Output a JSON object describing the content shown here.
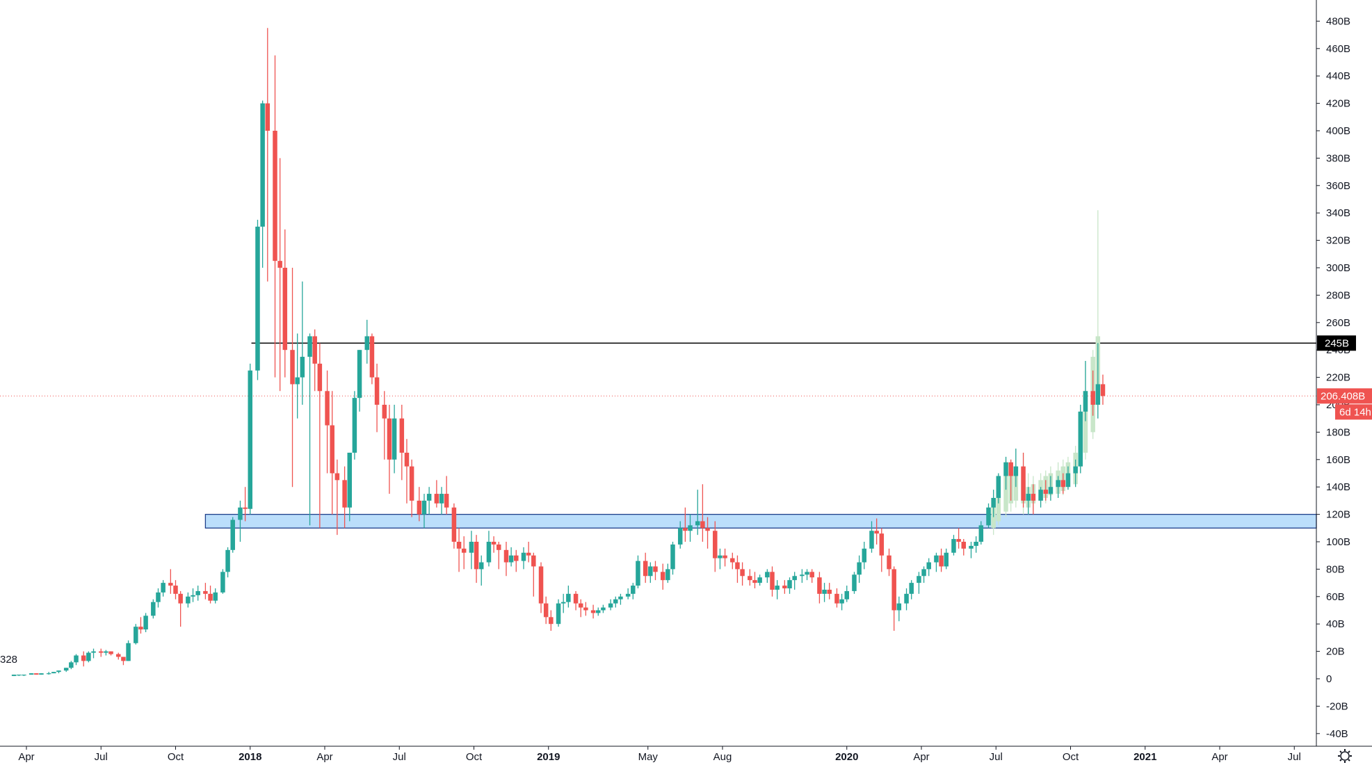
{
  "chart_data": {
    "type": "candlestick",
    "timeframe": "weekly",
    "y_axis": {
      "ticks": [
        "-40B",
        "-20B",
        "0",
        "20B",
        "40B",
        "60B",
        "80B",
        "100B",
        "120B",
        "140B",
        "160B",
        "180B",
        "200B",
        "220B",
        "240B",
        "260B",
        "280B",
        "300B",
        "320B",
        "340B",
        "360B",
        "380B",
        "400B",
        "420B",
        "440B",
        "460B",
        "480B"
      ],
      "tick_values": [
        -40,
        -20,
        0,
        20,
        40,
        60,
        80,
        100,
        120,
        140,
        160,
        180,
        200,
        220,
        240,
        260,
        280,
        300,
        320,
        340,
        360,
        380,
        400,
        420,
        440,
        460,
        480
      ],
      "range": [
        -45,
        490
      ],
      "unit": "B"
    },
    "x_axis": {
      "ticks": [
        {
          "label": "Apr",
          "month": 3,
          "bold": false
        },
        {
          "label": "Jul",
          "month": 6,
          "bold": false
        },
        {
          "label": "Oct",
          "month": 9,
          "bold": false
        },
        {
          "label": "2018",
          "month": 12,
          "bold": true
        },
        {
          "label": "Apr",
          "month": 15,
          "bold": false
        },
        {
          "label": "Jul",
          "month": 18,
          "bold": false
        },
        {
          "label": "Oct",
          "month": 21,
          "bold": false
        },
        {
          "label": "2019",
          "month": 24,
          "bold": true
        },
        {
          "label": "May",
          "month": 28,
          "bold": false
        },
        {
          "label": "Aug",
          "month": 31,
          "bold": false
        },
        {
          "label": "2020",
          "month": 36,
          "bold": true
        },
        {
          "label": "Apr",
          "month": 39,
          "bold": false
        },
        {
          "label": "Jul",
          "month": 42,
          "bold": false
        },
        {
          "label": "Oct",
          "month": 45,
          "bold": false
        },
        {
          "label": "2021",
          "month": 48,
          "bold": true
        },
        {
          "label": "Apr",
          "month": 51,
          "bold": false
        },
        {
          "label": "Jul",
          "month": 54,
          "bold": false
        }
      ],
      "range_months": [
        2.55,
        56.55
      ]
    },
    "left_label": "328",
    "horizontal_line": {
      "value": 245,
      "label": "245B",
      "color": "#000000"
    },
    "zone": {
      "low": 110,
      "high": 120,
      "start_month": 10.2,
      "fill": "#bbdefb",
      "stroke": "#1e3f8a"
    },
    "current_price": {
      "value": 206.408,
      "label": "206.408B",
      "countdown": "6d 14h",
      "color": "#ef5350"
    },
    "colors": {
      "up": "#26a69a",
      "down": "#ef5350",
      "up_alt": "#c8e6c9",
      "grid": "#ffffff",
      "axis": "#131722"
    },
    "candles": [
      [
        2.5,
        2,
        3,
        2,
        3
      ],
      [
        2.7,
        3,
        3,
        2,
        3
      ],
      [
        2.9,
        3,
        3,
        2,
        3
      ],
      [
        3.2,
        3,
        4,
        3,
        4
      ],
      [
        3.4,
        4,
        4,
        3,
        3
      ],
      [
        3.6,
        3,
        4,
        3,
        4
      ],
      [
        3.9,
        4,
        5,
        3,
        4
      ],
      [
        4.1,
        4,
        5,
        4,
        5
      ],
      [
        4.3,
        5,
        6,
        4,
        6
      ],
      [
        4.6,
        6,
        8,
        5,
        8
      ],
      [
        4.8,
        8,
        13,
        7,
        12
      ],
      [
        5.0,
        12,
        18,
        10,
        17
      ],
      [
        5.3,
        17,
        20,
        9,
        13
      ],
      [
        5.5,
        13,
        20,
        12,
        19
      ],
      [
        5.7,
        19,
        22,
        15,
        20
      ],
      [
        6.0,
        20,
        22,
        16,
        19
      ],
      [
        6.2,
        19,
        21,
        17,
        20
      ],
      [
        6.4,
        20,
        20,
        17,
        18
      ],
      [
        6.7,
        18,
        19,
        14,
        16
      ],
      [
        6.9,
        16,
        16,
        10,
        13
      ],
      [
        7.1,
        13,
        28,
        13,
        26
      ],
      [
        7.4,
        26,
        40,
        25,
        38
      ],
      [
        7.6,
        38,
        45,
        33,
        36
      ],
      [
        7.8,
        36,
        48,
        34,
        46
      ],
      [
        8.1,
        46,
        58,
        44,
        56
      ],
      [
        8.3,
        56,
        66,
        52,
        63
      ],
      [
        8.5,
        63,
        72,
        60,
        70
      ],
      [
        8.8,
        70,
        80,
        62,
        68
      ],
      [
        9.0,
        68,
        72,
        58,
        62
      ],
      [
        9.2,
        62,
        64,
        38,
        55
      ],
      [
        9.5,
        55,
        63,
        52,
        60
      ],
      [
        9.7,
        60,
        66,
        56,
        61
      ],
      [
        9.9,
        61,
        68,
        57,
        64
      ],
      [
        10.2,
        64,
        70,
        58,
        62
      ],
      [
        10.4,
        62,
        68,
        55,
        57
      ],
      [
        10.6,
        57,
        66,
        55,
        63
      ],
      [
        10.9,
        63,
        80,
        62,
        78
      ],
      [
        11.1,
        78,
        96,
        74,
        94
      ],
      [
        11.3,
        94,
        118,
        92,
        116
      ],
      [
        11.6,
        116,
        130,
        100,
        125
      ],
      [
        11.8,
        125,
        140,
        115,
        124
      ],
      [
        12.0,
        124,
        230,
        120,
        225
      ],
      [
        12.3,
        225,
        335,
        218,
        330
      ],
      [
        12.5,
        330,
        422,
        300,
        420
      ],
      [
        12.7,
        420,
        475,
        290,
        400
      ],
      [
        13.0,
        400,
        455,
        220,
        305
      ],
      [
        13.2,
        305,
        380,
        210,
        300
      ],
      [
        13.4,
        300,
        328,
        220,
        240
      ],
      [
        13.7,
        240,
        300,
        140,
        215
      ],
      [
        13.9,
        215,
        252,
        190,
        220
      ],
      [
        14.1,
        220,
        290,
        200,
        235
      ],
      [
        14.4,
        235,
        252,
        112,
        250
      ],
      [
        14.6,
        250,
        255,
        210,
        230
      ],
      [
        14.8,
        230,
        245,
        110,
        210
      ],
      [
        15.1,
        210,
        225,
        150,
        185
      ],
      [
        15.3,
        185,
        210,
        120,
        150
      ],
      [
        15.5,
        150,
        160,
        105,
        145
      ],
      [
        15.8,
        145,
        155,
        110,
        125
      ],
      [
        16.0,
        125,
        165,
        115,
        165
      ],
      [
        16.2,
        165,
        210,
        160,
        205
      ],
      [
        16.4,
        205,
        240,
        195,
        240
      ],
      [
        16.7,
        240,
        262,
        230,
        250
      ],
      [
        16.9,
        250,
        252,
        215,
        220
      ],
      [
        17.1,
        220,
        230,
        180,
        200
      ],
      [
        17.4,
        200,
        210,
        160,
        190
      ],
      [
        17.6,
        190,
        200,
        135,
        160
      ],
      [
        17.8,
        160,
        200,
        150,
        190
      ],
      [
        18.1,
        190,
        200,
        145,
        165
      ],
      [
        18.3,
        165,
        175,
        128,
        155
      ],
      [
        18.5,
        155,
        160,
        118,
        130
      ],
      [
        18.8,
        130,
        140,
        115,
        120
      ],
      [
        19.0,
        120,
        135,
        110,
        130
      ],
      [
        19.2,
        130,
        140,
        120,
        135
      ],
      [
        19.5,
        135,
        145,
        125,
        128
      ],
      [
        19.7,
        128,
        140,
        120,
        135
      ],
      [
        19.9,
        135,
        148,
        120,
        125
      ],
      [
        20.2,
        125,
        128,
        95,
        100
      ],
      [
        20.4,
        100,
        110,
        78,
        95
      ],
      [
        20.6,
        95,
        104,
        80,
        92
      ],
      [
        20.9,
        92,
        108,
        80,
        100
      ],
      [
        21.1,
        100,
        105,
        70,
        80
      ],
      [
        21.3,
        80,
        90,
        68,
        85
      ],
      [
        21.6,
        85,
        108,
        82,
        100
      ],
      [
        21.8,
        100,
        104,
        92,
        98
      ],
      [
        22.0,
        98,
        100,
        80,
        94
      ],
      [
        22.3,
        94,
        100,
        75,
        85
      ],
      [
        22.5,
        85,
        96,
        82,
        90
      ],
      [
        22.7,
        90,
        94,
        78,
        86
      ],
      [
        23.0,
        86,
        96,
        80,
        92
      ],
      [
        23.2,
        92,
        100,
        85,
        90
      ],
      [
        23.4,
        90,
        92,
        60,
        82
      ],
      [
        23.7,
        82,
        85,
        48,
        55
      ],
      [
        23.9,
        55,
        60,
        40,
        45
      ],
      [
        24.1,
        45,
        50,
        35,
        40
      ],
      [
        24.4,
        40,
        58,
        38,
        55
      ],
      [
        24.6,
        55,
        62,
        48,
        56
      ],
      [
        24.8,
        56,
        68,
        52,
        62
      ],
      [
        25.1,
        62,
        64,
        50,
        55
      ],
      [
        25.3,
        55,
        58,
        45,
        52
      ],
      [
        25.5,
        52,
        56,
        46,
        50
      ],
      [
        25.8,
        50,
        54,
        44,
        48
      ],
      [
        26.0,
        48,
        52,
        46,
        50
      ],
      [
        26.2,
        50,
        54,
        48,
        52
      ],
      [
        26.5,
        52,
        58,
        50,
        55
      ],
      [
        26.7,
        55,
        60,
        52,
        58
      ],
      [
        26.9,
        58,
        62,
        54,
        60
      ],
      [
        27.2,
        60,
        66,
        58,
        62
      ],
      [
        27.4,
        62,
        70,
        58,
        68
      ],
      [
        27.6,
        68,
        90,
        66,
        86
      ],
      [
        27.9,
        86,
        92,
        70,
        75
      ],
      [
        28.1,
        75,
        85,
        70,
        82
      ],
      [
        28.3,
        82,
        86,
        72,
        78
      ],
      [
        28.6,
        78,
        84,
        65,
        72
      ],
      [
        28.8,
        72,
        84,
        70,
        80
      ],
      [
        29.0,
        80,
        100,
        76,
        98
      ],
      [
        29.3,
        98,
        115,
        95,
        110
      ],
      [
        29.5,
        110,
        125,
        100,
        108
      ],
      [
        29.7,
        108,
        120,
        100,
        112
      ],
      [
        30.0,
        112,
        138,
        105,
        115
      ],
      [
        30.2,
        115,
        142,
        100,
        110
      ],
      [
        30.4,
        110,
        118,
        95,
        108
      ],
      [
        30.7,
        108,
        115,
        78,
        88
      ],
      [
        30.9,
        88,
        95,
        80,
        90
      ],
      [
        31.1,
        90,
        95,
        82,
        88
      ],
      [
        31.4,
        88,
        92,
        80,
        85
      ],
      [
        31.6,
        85,
        90,
        70,
        80
      ],
      [
        31.8,
        80,
        85,
        68,
        75
      ],
      [
        32.1,
        75,
        80,
        68,
        72
      ],
      [
        32.3,
        72,
        78,
        66,
        70
      ],
      [
        32.5,
        70,
        76,
        68,
        74
      ],
      [
        32.8,
        74,
        80,
        70,
        78
      ],
      [
        33.0,
        78,
        82,
        60,
        65
      ],
      [
        33.2,
        65,
        72,
        58,
        68
      ],
      [
        33.5,
        68,
        72,
        62,
        66
      ],
      [
        33.7,
        66,
        74,
        62,
        72
      ],
      [
        33.9,
        72,
        78,
        65,
        75
      ],
      [
        34.2,
        75,
        80,
        70,
        76
      ],
      [
        34.4,
        76,
        80,
        72,
        78
      ],
      [
        34.6,
        78,
        80,
        70,
        74
      ],
      [
        34.9,
        74,
        78,
        55,
        62
      ],
      [
        35.1,
        62,
        70,
        56,
        65
      ],
      [
        35.3,
        65,
        70,
        58,
        62
      ],
      [
        35.6,
        62,
        66,
        52,
        55
      ],
      [
        35.8,
        55,
        62,
        50,
        58
      ],
      [
        36.0,
        58,
        68,
        56,
        64
      ],
      [
        36.3,
        64,
        78,
        62,
        76
      ],
      [
        36.5,
        76,
        90,
        70,
        85
      ],
      [
        36.7,
        85,
        100,
        80,
        95
      ],
      [
        37.0,
        95,
        115,
        92,
        108
      ],
      [
        37.2,
        108,
        117,
        98,
        106
      ],
      [
        37.4,
        106,
        110,
        78,
        90
      ],
      [
        37.7,
        90,
        95,
        75,
        80
      ],
      [
        37.9,
        80,
        82,
        35,
        50
      ],
      [
        38.1,
        50,
        60,
        42,
        55
      ],
      [
        38.4,
        55,
        66,
        50,
        62
      ],
      [
        38.6,
        62,
        72,
        58,
        70
      ],
      [
        38.9,
        70,
        78,
        62,
        75
      ],
      [
        39.1,
        75,
        82,
        70,
        80
      ],
      [
        39.3,
        80,
        88,
        75,
        85
      ],
      [
        39.6,
        85,
        92,
        78,
        90
      ],
      [
        39.8,
        90,
        95,
        78,
        82
      ],
      [
        40.0,
        82,
        95,
        80,
        92
      ],
      [
        40.3,
        92,
        105,
        90,
        102
      ],
      [
        40.5,
        102,
        110,
        95,
        100
      ],
      [
        40.7,
        100,
        102,
        90,
        95
      ],
      [
        41.0,
        95,
        100,
        88,
        97
      ],
      [
        41.2,
        97,
        104,
        92,
        100
      ],
      [
        41.4,
        100,
        115,
        98,
        112
      ],
      [
        41.7,
        112,
        128,
        110,
        125
      ],
      [
        41.9,
        125,
        138,
        118,
        132
      ],
      [
        42.1,
        132,
        150,
        128,
        148
      ],
      [
        42.4,
        148,
        162,
        138,
        158
      ],
      [
        42.6,
        158,
        160,
        130,
        148
      ],
      [
        42.8,
        148,
        168,
        140,
        155
      ],
      [
        43.1,
        155,
        165,
        125,
        130
      ],
      [
        43.3,
        130,
        140,
        120,
        135
      ],
      [
        43.5,
        135,
        142,
        120,
        130
      ],
      [
        43.8,
        130,
        140,
        125,
        138
      ],
      [
        44.0,
        138,
        145,
        130,
        135
      ],
      [
        44.2,
        135,
        148,
        130,
        140
      ],
      [
        44.5,
        140,
        148,
        132,
        145
      ],
      [
        44.7,
        145,
        150,
        135,
        140
      ],
      [
        44.9,
        140,
        155,
        138,
        150
      ],
      [
        45.2,
        150,
        160,
        140,
        155
      ],
      [
        45.4,
        155,
        200,
        150,
        195
      ],
      [
        45.6,
        195,
        232,
        188,
        210
      ],
      [
        45.9,
        210,
        225,
        192,
        200
      ],
      [
        46.1,
        200,
        245,
        190,
        215
      ],
      [
        46.3,
        215,
        222,
        200,
        206.408
      ]
    ],
    "ghost_candles": [
      [
        41.9,
        110,
        138,
        105,
        132
      ],
      [
        42.1,
        115,
        150,
        112,
        148
      ],
      [
        42.4,
        122,
        162,
        118,
        158
      ],
      [
        42.6,
        128,
        160,
        122,
        148
      ],
      [
        42.8,
        130,
        168,
        125,
        155
      ],
      [
        43.1,
        128,
        165,
        120,
        145
      ],
      [
        43.3,
        125,
        150,
        120,
        140
      ],
      [
        43.5,
        128,
        148,
        122,
        142
      ],
      [
        43.8,
        130,
        150,
        126,
        145
      ],
      [
        44.0,
        132,
        152,
        128,
        148
      ],
      [
        44.2,
        134,
        155,
        130,
        150
      ],
      [
        44.5,
        135,
        158,
        132,
        152
      ],
      [
        44.7,
        137,
        160,
        134,
        155
      ],
      [
        44.9,
        140,
        162,
        138,
        158
      ],
      [
        45.2,
        142,
        170,
        140,
        165
      ],
      [
        45.4,
        155,
        200,
        150,
        195
      ],
      [
        45.6,
        165,
        232,
        160,
        210
      ],
      [
        45.9,
        180,
        240,
        175,
        235
      ],
      [
        46.1,
        200,
        342,
        190,
        250
      ]
    ]
  }
}
